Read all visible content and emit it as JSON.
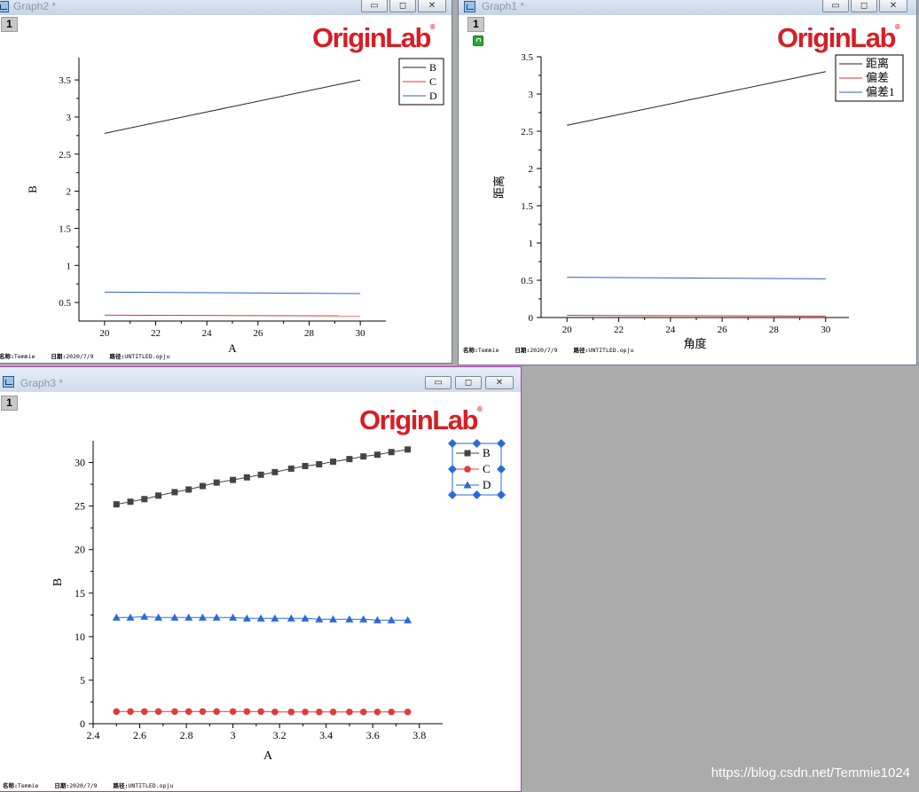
{
  "graph2": {
    "title": "Graph2 *",
    "layer": "1",
    "logo": "OriginLab",
    "xlabel": "A",
    "ylabel": "B",
    "xticks": [
      "20",
      "22",
      "24",
      "26",
      "28",
      "30"
    ],
    "yticks": [
      "0.5",
      "1",
      "1.5",
      "2",
      "2.5",
      "3",
      "3.5"
    ],
    "legend": [
      "B",
      "C",
      "D"
    ],
    "footer": {
      "name_label": "名称:",
      "name": "Temmie",
      "date_label": "日期:",
      "date": "2020/7/9",
      "path_label": "路径:",
      "path": "UNTITLED.opju"
    }
  },
  "graph1": {
    "title": "Graph1 *",
    "layer": "1",
    "logo": "OriginLab",
    "xlabel": "角度",
    "ylabel": "距离",
    "xticks": [
      "20",
      "22",
      "24",
      "26",
      "28",
      "30"
    ],
    "yticks": [
      "0",
      "0.5",
      "1",
      "1.5",
      "2",
      "2.5",
      "3",
      "3.5"
    ],
    "legend": [
      "距离",
      "偏差",
      "偏差1"
    ],
    "footer": {
      "name_label": "名称:",
      "name": "Temmie",
      "date_label": "日期:",
      "date": "2020/7/9",
      "path_label": "路径:",
      "path": "UNTITLED.opju"
    }
  },
  "graph3": {
    "title": "Graph3 *",
    "layer": "1",
    "logo": "OriginLab",
    "xlabel": "A",
    "ylabel": "B",
    "xticks": [
      "2.4",
      "2.6",
      "2.8",
      "3",
      "3.2",
      "3.4",
      "3.6",
      "3.8"
    ],
    "yticks": [
      "0",
      "5",
      "10",
      "15",
      "20",
      "25",
      "30"
    ],
    "legend": [
      "B",
      "C",
      "D"
    ],
    "footer": {
      "name_label": "名称:",
      "name": "Temmie",
      "date_label": "日期:",
      "date": "2020/7/9",
      "path_label": "路径:",
      "path": "UNTITLED.opju"
    }
  },
  "window_buttons": {
    "minimize": "▭",
    "restore": "◻",
    "close": "✕"
  },
  "watermark": "https://blog.csdn.net/Temmie1024",
  "chart_data": [
    {
      "type": "line",
      "xlabel": "A",
      "ylabel": "B",
      "xlim": [
        19,
        31
      ],
      "ylim": [
        0.25,
        3.8
      ],
      "series": [
        {
          "name": "B",
          "color": "#222222",
          "x": [
            20,
            30
          ],
          "values": [
            2.78,
            3.5
          ]
        },
        {
          "name": "C",
          "color": "#e03030",
          "x": [
            20,
            30
          ],
          "values": [
            0.33,
            0.32
          ]
        },
        {
          "name": "D",
          "color": "#2a5fcc",
          "x": [
            20,
            30
          ],
          "values": [
            0.64,
            0.62
          ]
        }
      ],
      "legend_position": "top-right"
    },
    {
      "type": "line",
      "xlabel": "角度",
      "ylabel": "距离",
      "xlim": [
        19,
        30.9
      ],
      "ylim": [
        0,
        3.5
      ],
      "series": [
        {
          "name": "距离",
          "color": "#222222",
          "x": [
            20,
            30
          ],
          "values": [
            2.58,
            3.3
          ]
        },
        {
          "name": "偏差",
          "color": "#e03030",
          "x": [
            20,
            30
          ],
          "values": [
            0.03,
            0.02
          ]
        },
        {
          "name": "偏差1",
          "color": "#2a5fcc",
          "x": [
            20,
            30
          ],
          "values": [
            0.54,
            0.52
          ]
        }
      ],
      "legend_position": "top-right"
    },
    {
      "type": "line",
      "xlabel": "A",
      "ylabel": "B",
      "xlim": [
        2.4,
        3.9
      ],
      "ylim": [
        0,
        32.5
      ],
      "x": [
        2.5,
        2.56,
        2.62,
        2.68,
        2.75,
        2.81,
        2.87,
        2.93,
        3.0,
        3.06,
        3.12,
        3.18,
        3.25,
        3.31,
        3.37,
        3.43,
        3.5,
        3.56,
        3.62,
        3.68,
        3.75
      ],
      "series": [
        {
          "name": "B",
          "color": "#444444",
          "marker": "square",
          "values": [
            25.2,
            25.5,
            25.8,
            26.2,
            26.6,
            26.9,
            27.3,
            27.7,
            28.0,
            28.3,
            28.6,
            28.9,
            29.3,
            29.6,
            29.8,
            30.1,
            30.4,
            30.7,
            30.9,
            31.2,
            31.5
          ]
        },
        {
          "name": "C",
          "color": "#e03c3c",
          "marker": "circle",
          "values": [
            1.4,
            1.4,
            1.4,
            1.4,
            1.4,
            1.4,
            1.4,
            1.4,
            1.4,
            1.4,
            1.4,
            1.35,
            1.35,
            1.35,
            1.35,
            1.35,
            1.35,
            1.35,
            1.35,
            1.35,
            1.35
          ]
        },
        {
          "name": "D",
          "color": "#2a6ad8",
          "marker": "triangle",
          "values": [
            12.2,
            12.2,
            12.3,
            12.2,
            12.2,
            12.2,
            12.2,
            12.2,
            12.2,
            12.1,
            12.1,
            12.1,
            12.1,
            12.1,
            12.0,
            12.0,
            12.0,
            12.0,
            11.9,
            11.9,
            11.9
          ]
        }
      ],
      "legend_position": "top-right"
    }
  ]
}
